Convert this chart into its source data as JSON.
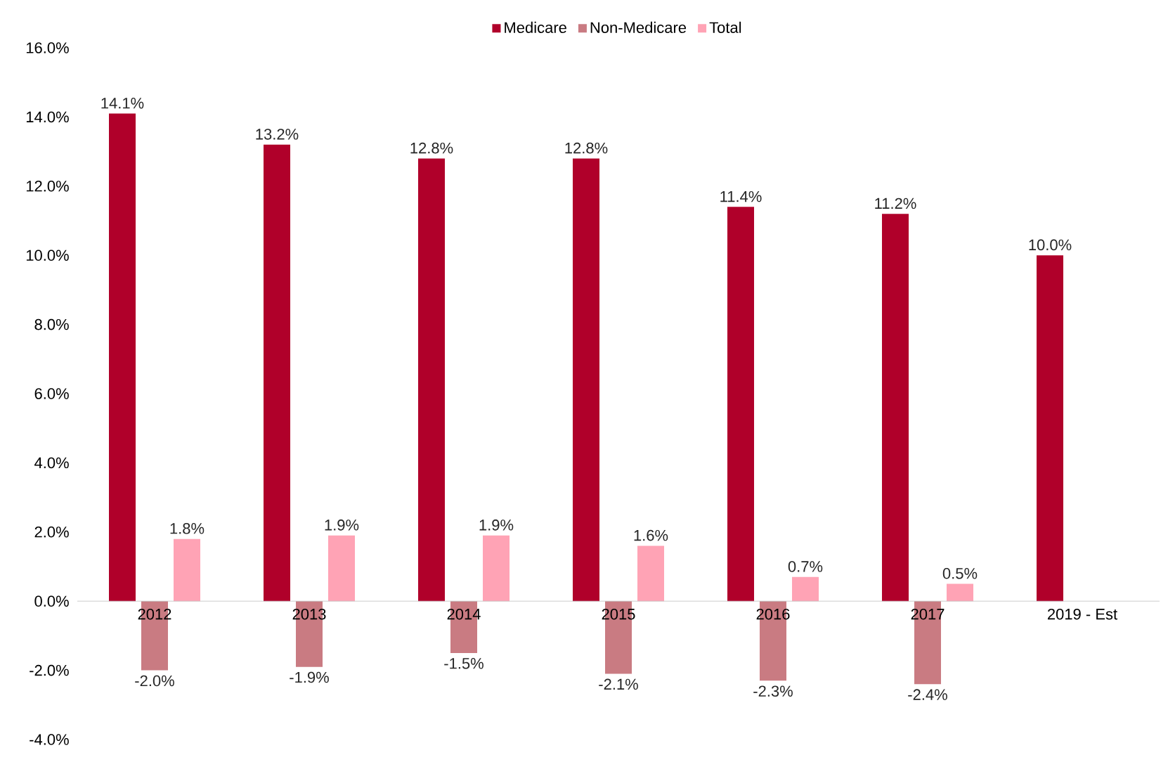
{
  "chart_data": {
    "type": "bar",
    "categories": [
      "2012",
      "2013",
      "2014",
      "2015",
      "2016",
      "2017",
      "2019 - Est"
    ],
    "series": [
      {
        "name": "Medicare",
        "color": "#b0002a",
        "values": [
          14.1,
          13.2,
          12.8,
          12.8,
          11.4,
          11.2,
          10.0
        ],
        "value_labels": [
          "14.1%",
          "13.2%",
          "12.8%",
          "12.8%",
          "11.4%",
          "11.2%",
          "10.0%"
        ]
      },
      {
        "name": "Non-Medicare",
        "color": "#c97b82",
        "values": [
          -2.0,
          -1.9,
          -1.5,
          -2.1,
          -2.3,
          -2.4,
          null
        ],
        "value_labels": [
          "-2.0%",
          "-1.9%",
          "-1.5%",
          "-2.1%",
          "-2.3%",
          "-2.4%",
          null
        ]
      },
      {
        "name": "Total",
        "color": "#ffa3b5",
        "values": [
          1.8,
          1.9,
          1.9,
          1.6,
          0.7,
          0.5,
          null
        ],
        "value_labels": [
          "1.8%",
          "1.9%",
          "1.9%",
          "1.6%",
          "0.7%",
          "0.5%",
          null
        ]
      }
    ],
    "ylim": [
      -4,
      16
    ],
    "yticks": [
      {
        "value": -4,
        "label": "-4.0%"
      },
      {
        "value": -2,
        "label": "-2.0%"
      },
      {
        "value": 0,
        "label": "0.0%"
      },
      {
        "value": 2,
        "label": "2.0%"
      },
      {
        "value": 4,
        "label": "4.0%"
      },
      {
        "value": 6,
        "label": "6.0%"
      },
      {
        "value": 8,
        "label": "8.0%"
      },
      {
        "value": 10,
        "label": "10.0%"
      },
      {
        "value": 12,
        "label": "12.0%"
      },
      {
        "value": 14,
        "label": "14.0%"
      },
      {
        "value": 16,
        "label": "16.0%"
      }
    ],
    "legend": "top"
  }
}
